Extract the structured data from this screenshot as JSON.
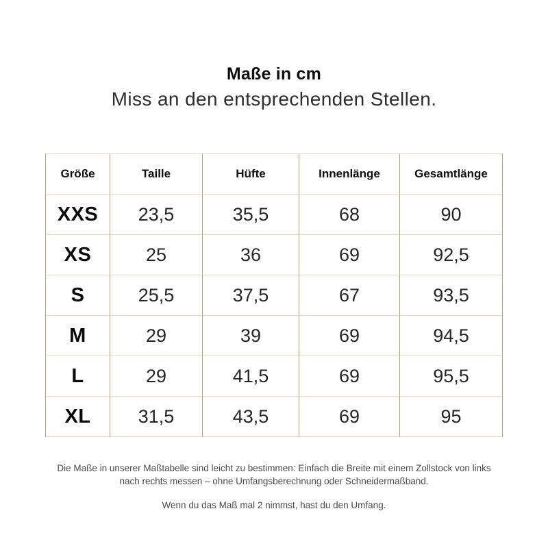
{
  "header": {
    "title": "Maße in cm",
    "subtitle": "Miss an den entsprechenden Stellen."
  },
  "table": {
    "headers": [
      "Größe",
      "Taille",
      "Hüfte",
      "Innenlänge",
      "Gesamtlänge"
    ],
    "rows": [
      {
        "size": "XXS",
        "values": [
          "23,5",
          "35,5",
          "68",
          "90"
        ]
      },
      {
        "size": "XS",
        "values": [
          "25",
          "36",
          "69",
          "92,5"
        ]
      },
      {
        "size": "S",
        "values": [
          "25,5",
          "37,5",
          "67",
          "93,5"
        ]
      },
      {
        "size": "M",
        "values": [
          "29",
          "39",
          "69",
          "94,5"
        ]
      },
      {
        "size": "L",
        "values": [
          "29",
          "41,5",
          "69",
          "95,5"
        ]
      },
      {
        "size": "XL",
        "values": [
          "31,5",
          "43,5",
          "69",
          "95"
        ]
      }
    ]
  },
  "footer": {
    "paragraph1": "Die Maße in unserer Maßtabelle sind leicht zu bestimmen: Einfach die Breite mit einem Zollstock von links nach rechts messen – ohne Umfangsberechnung oder Schneidermaßband.",
    "paragraph2": "Wenn du das Maß mal 2 nimmst, hast du den Umfang."
  },
  "colors": {
    "background": "#ffffff",
    "vertical_rule": "#bf9a72",
    "horizontal_rule": "#e9d6c1",
    "text_primary": "#0d0d0d",
    "text_secondary": "#4a4a4a"
  }
}
